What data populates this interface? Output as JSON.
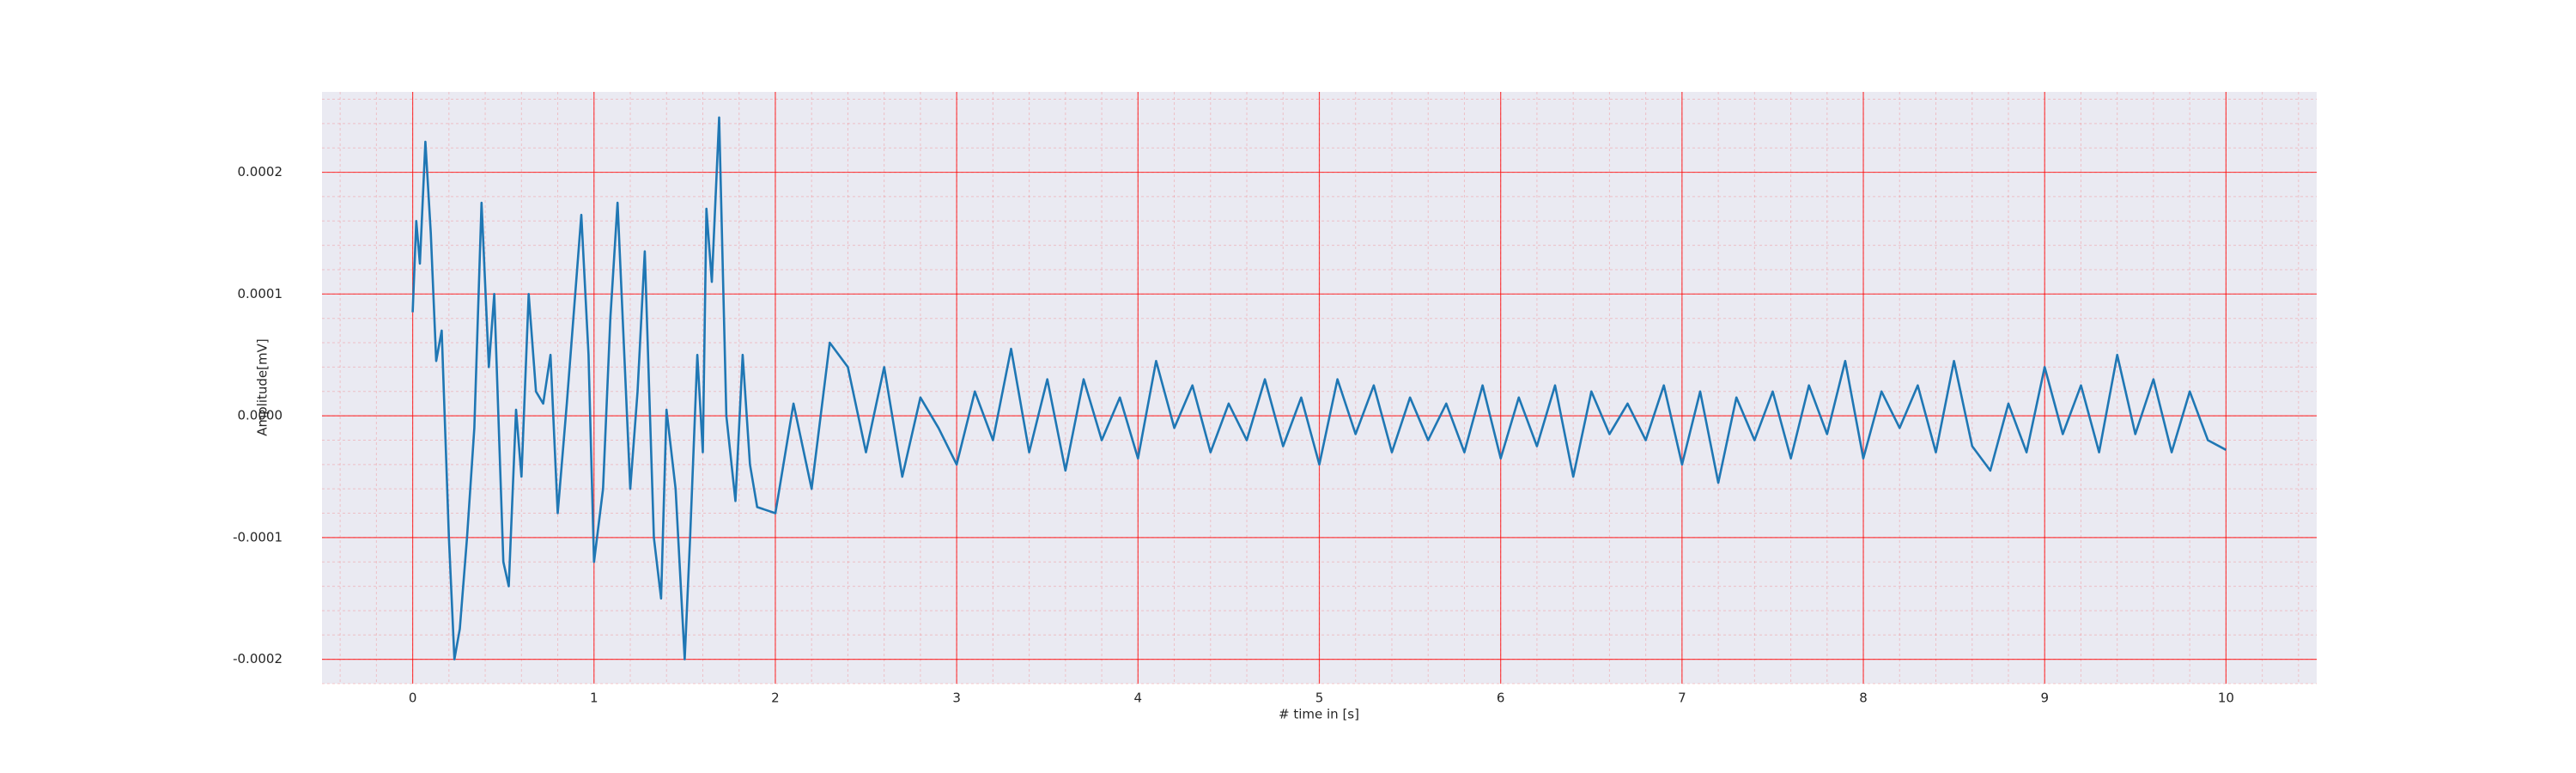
{
  "chart_data": {
    "type": "line",
    "xlabel": "# time in [s]",
    "ylabel": "Amplitude[mV]",
    "x": [
      0,
      0.02,
      0.04,
      0.07,
      0.1,
      0.13,
      0.16,
      0.2,
      0.23,
      0.26,
      0.3,
      0.34,
      0.38,
      0.42,
      0.45,
      0.5,
      0.53,
      0.57,
      0.6,
      0.64,
      0.68,
      0.72,
      0.76,
      0.8,
      0.85,
      0.93,
      0.97,
      1.0,
      1.05,
      1.09,
      1.13,
      1.17,
      1.2,
      1.24,
      1.28,
      1.33,
      1.37,
      1.4,
      1.45,
      1.5,
      1.53,
      1.57,
      1.6,
      1.62,
      1.65,
      1.69,
      1.73,
      1.78,
      1.82,
      1.86,
      1.9,
      2.0,
      2.1,
      2.2,
      2.3,
      2.4,
      2.5,
      2.6,
      2.7,
      2.8,
      2.9,
      3.0,
      3.1,
      3.2,
      3.3,
      3.4,
      3.5,
      3.6,
      3.7,
      3.8,
      3.9,
      4.0,
      4.1,
      4.2,
      4.3,
      4.4,
      4.5,
      4.6,
      4.7,
      4.8,
      4.9,
      5.0,
      5.1,
      5.2,
      5.3,
      5.4,
      5.5,
      5.6,
      5.7,
      5.8,
      5.9,
      6.0,
      6.1,
      6.2,
      6.3,
      6.4,
      6.5,
      6.6,
      6.7,
      6.8,
      6.9,
      7.0,
      7.1,
      7.2,
      7.3,
      7.4,
      7.5,
      7.6,
      7.7,
      7.8,
      7.9,
      8.0,
      8.1,
      8.2,
      8.3,
      8.4,
      8.5,
      8.6,
      8.7,
      8.8,
      8.9,
      9.0,
      9.1,
      9.2,
      9.3,
      9.4,
      9.5,
      9.6,
      9.7,
      9.8,
      9.9,
      10.0
    ],
    "series": [
      {
        "color": "#1f77b4",
        "values": [
          8.5e-05,
          0.00016,
          0.000125,
          0.000225,
          0.00015,
          4.5e-05,
          7e-05,
          -0.0001,
          -0.0002,
          -0.000175,
          -0.0001,
          -1e-05,
          0.000175,
          4e-05,
          0.0001,
          -0.00012,
          -0.00014,
          5e-06,
          -5e-05,
          0.0001,
          2e-05,
          1e-05,
          5e-05,
          -8e-05,
          1e-05,
          0.000165,
          5e-05,
          -0.00012,
          -6e-05,
          8e-05,
          0.000175,
          4e-05,
          -6e-05,
          2e-05,
          0.000135,
          -0.0001,
          -0.00015,
          5e-06,
          -6e-05,
          -0.0002,
          -0.0001,
          5e-05,
          -3e-05,
          0.00017,
          0.00011,
          0.000245,
          0,
          -7e-05,
          5e-05,
          -4e-05,
          -7.5e-05,
          -8e-05,
          1e-05,
          -6e-05,
          6e-05,
          4e-05,
          -3e-05,
          4e-05,
          -5e-05,
          1.5e-05,
          -1e-05,
          -4e-05,
          2e-05,
          -2e-05,
          5.5e-05,
          -3e-05,
          3e-05,
          -4.5e-05,
          3e-05,
          -2e-05,
          1.5e-05,
          -3.5e-05,
          4.5e-05,
          -1e-05,
          2.5e-05,
          -3e-05,
          1e-05,
          -2e-05,
          3e-05,
          -2.5e-05,
          1.5e-05,
          -4e-05,
          3e-05,
          -1.5e-05,
          2.5e-05,
          -3e-05,
          1.5e-05,
          -2e-05,
          1e-05,
          -3e-05,
          2.5e-05,
          -3.5e-05,
          1.5e-05,
          -2.5e-05,
          2.5e-05,
          -5e-05,
          2e-05,
          -1.5e-05,
          1e-05,
          -2e-05,
          2.5e-05,
          -4e-05,
          2e-05,
          -5.5e-05,
          1.5e-05,
          -2e-05,
          2e-05,
          -3.5e-05,
          2.5e-05,
          -1.5e-05,
          4.5e-05,
          -3.5e-05,
          2e-05,
          -1e-05,
          2.5e-05,
          -3e-05,
          4.5e-05,
          -2.5e-05,
          -4.5e-05,
          1e-05,
          -3e-05,
          4e-05,
          -1.5e-05,
          2.5e-05,
          -3e-05,
          5e-05,
          -1.5e-05,
          3e-05,
          -3e-05,
          2e-05,
          -2e-05,
          -2.8e-05
        ]
      }
    ],
    "xlim": [
      -0.5,
      10.5
    ],
    "xticks": [
      0,
      1,
      2,
      3,
      4,
      5,
      6,
      7,
      8,
      9,
      10
    ],
    "ylim": [
      -0.00022,
      0.000266
    ],
    "yticks": [
      {
        "value": -0.0002,
        "label": "-0.0002"
      },
      {
        "value": -0.0001,
        "label": "-0.0001"
      },
      {
        "value": 0,
        "label": "0.0000"
      },
      {
        "value": 0.0001,
        "label": "0.0001"
      },
      {
        "value": 0.0002,
        "label": "0.0002"
      }
    ],
    "grid": true,
    "grid_color": "#ff0000",
    "background": "#eaeaf2"
  }
}
